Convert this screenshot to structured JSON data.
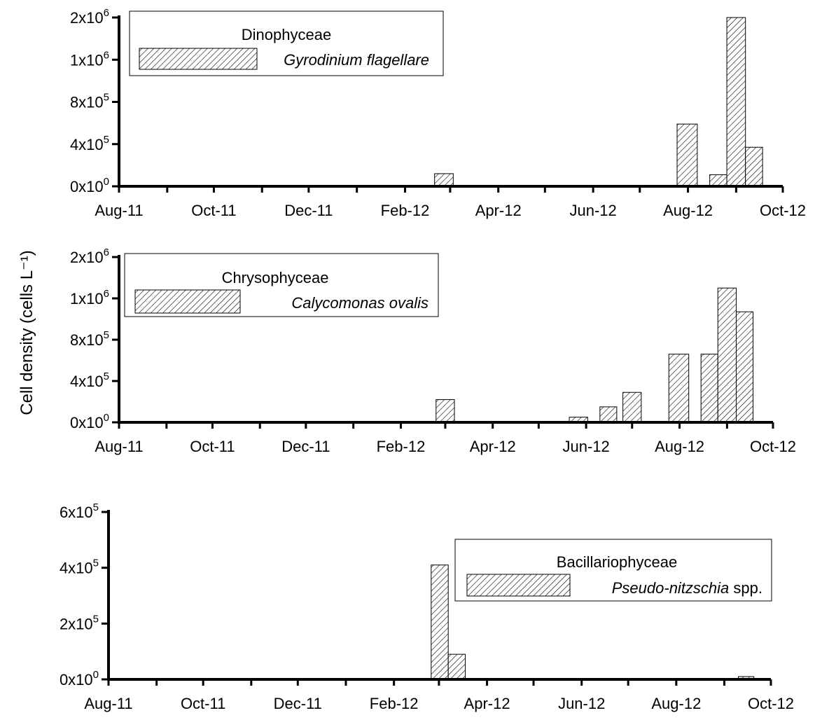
{
  "y_axis_title": "Cell density (cells L⁻¹)",
  "chart_data": [
    {
      "type": "bar",
      "legend": {
        "group": "Dinophyceae",
        "series": "Gyrodinium flagellare",
        "series_suffix": "",
        "placement": "top-left"
      },
      "x_ticks": [
        "Aug-11",
        "Oct-11",
        "Dec-11",
        "Feb-12",
        "Apr-12",
        "Jun-12",
        "Aug-12",
        "Oct-12"
      ],
      "y_ticks": [
        {
          "value": 0,
          "mant": "0x10",
          "exp": "0"
        },
        {
          "value": 400000,
          "mant": "4x10",
          "exp": "5"
        },
        {
          "value": 800000,
          "mant": "8x10",
          "exp": "5"
        },
        {
          "value": 1200000,
          "mant": "1x10",
          "exp": "6"
        },
        {
          "value": 1600000,
          "mant": "2x10",
          "exp": "6"
        }
      ],
      "ylim": [
        0,
        1600000
      ],
      "xlim": [
        "2011-08-01",
        "2012-10-01"
      ],
      "grid": false,
      "series": [
        {
          "name": "Gyrodinium flagellare",
          "points": [
            {
              "start": "2012-02-20",
              "end": "2012-03-03",
              "value": 120000
            },
            {
              "start": "2012-07-25",
              "end": "2012-08-07",
              "value": 590000
            },
            {
              "start": "2012-08-15",
              "end": "2012-08-26",
              "value": 110000
            },
            {
              "start": "2012-08-26",
              "end": "2012-09-07",
              "value": 1600000
            },
            {
              "start": "2012-09-07",
              "end": "2012-09-18",
              "value": 370000
            }
          ]
        }
      ]
    },
    {
      "type": "bar",
      "legend": {
        "group": "Chrysophyceae",
        "series": "Calycomonas ovalis",
        "series_suffix": "",
        "placement": "top-left"
      },
      "x_ticks": [
        "Aug-11",
        "Oct-11",
        "Dec-11",
        "Feb-12",
        "Apr-12",
        "Jun-12",
        "Aug-12",
        "Oct-12"
      ],
      "y_ticks": [
        {
          "value": 0,
          "mant": "0x10",
          "exp": "0"
        },
        {
          "value": 400000,
          "mant": "4x10",
          "exp": "5"
        },
        {
          "value": 800000,
          "mant": "8x10",
          "exp": "5"
        },
        {
          "value": 1200000,
          "mant": "1x10",
          "exp": "6"
        },
        {
          "value": 1600000,
          "mant": "2x10",
          "exp": "6"
        }
      ],
      "ylim": [
        0,
        1600000
      ],
      "xlim": [
        "2011-08-01",
        "2012-10-01"
      ],
      "grid": false,
      "series": [
        {
          "name": "Calycomonas ovalis",
          "points": [
            {
              "start": "2012-02-24",
              "end": "2012-03-07",
              "value": 220000
            },
            {
              "start": "2012-05-21",
              "end": "2012-06-02",
              "value": 50000
            },
            {
              "start": "2012-06-10",
              "end": "2012-06-21",
              "value": 150000
            },
            {
              "start": "2012-06-25",
              "end": "2012-07-07",
              "value": 290000
            },
            {
              "start": "2012-07-25",
              "end": "2012-08-07",
              "value": 660000
            },
            {
              "start": "2012-08-15",
              "end": "2012-08-26",
              "value": 660000
            },
            {
              "start": "2012-08-26",
              "end": "2012-09-07",
              "value": 1300000
            },
            {
              "start": "2012-09-07",
              "end": "2012-09-18",
              "value": 1070000
            }
          ]
        }
      ]
    },
    {
      "type": "bar",
      "legend": {
        "group": "Bacillariophyceae",
        "series": "Pseudo-nitzschia",
        "series_suffix": " spp.",
        "placement": "top-right"
      },
      "x_ticks": [
        "Aug-11",
        "Oct-11",
        "Dec-11",
        "Feb-12",
        "Apr-12",
        "Jun-12",
        "Aug-12",
        "Oct-12"
      ],
      "y_ticks": [
        {
          "value": 0,
          "mant": "0x10",
          "exp": "0"
        },
        {
          "value": 200000,
          "mant": "2x10",
          "exp": "5"
        },
        {
          "value": 400000,
          "mant": "4x10",
          "exp": "5"
        },
        {
          "value": 600000,
          "mant": "6x10",
          "exp": "5"
        }
      ],
      "ylim": [
        0,
        600000
      ],
      "xlim": [
        "2011-08-01",
        "2012-10-01"
      ],
      "grid": false,
      "series": [
        {
          "name": "Pseudo-nitzschia spp.",
          "points": [
            {
              "start": "2012-02-25",
              "end": "2012-03-07",
              "value": 410000
            },
            {
              "start": "2012-03-07",
              "end": "2012-03-18",
              "value": 90000
            },
            {
              "start": "2012-09-10",
              "end": "2012-09-20",
              "value": 10000
            }
          ]
        }
      ]
    }
  ]
}
